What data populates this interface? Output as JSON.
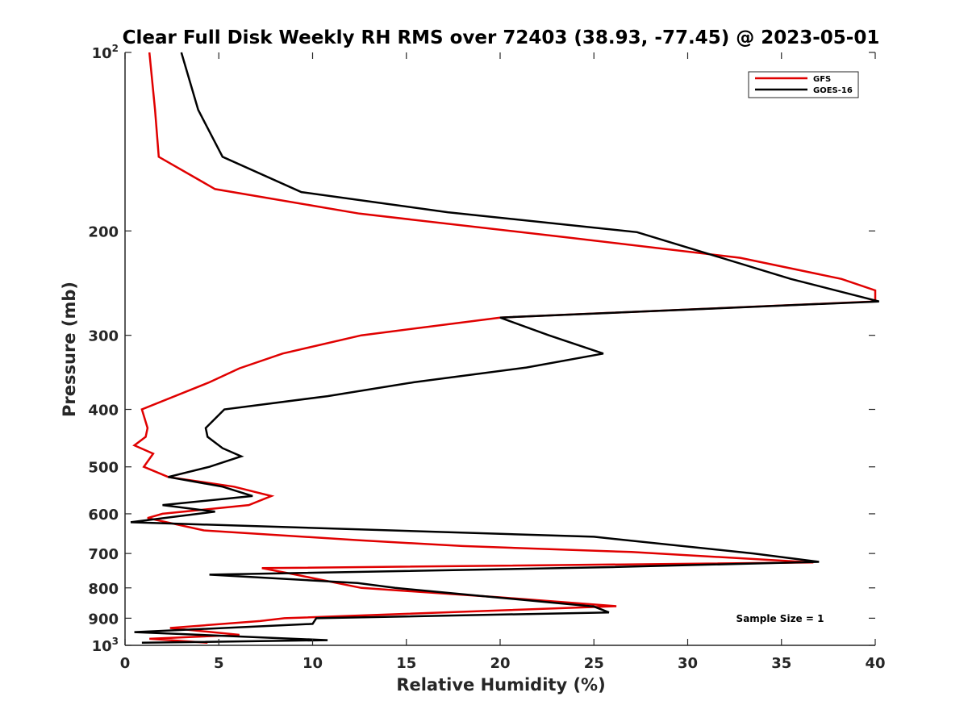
{
  "chart_data": {
    "type": "line",
    "title": "Clear Full Disk Weekly RH RMS over 72403 (38.93, -77.45) @ 2023-05-01",
    "xlabel": "Relative Humidity (%)",
    "ylabel": "Pressure (mb)",
    "xlim": [
      0,
      40
    ],
    "ylim": [
      100,
      1000
    ],
    "yscale": "log",
    "y_reversed": true,
    "grid": false,
    "legend_position": "top-right",
    "annotation": "Sample Size = 1",
    "x_ticks": [
      "0",
      "5",
      "10",
      "15",
      "20",
      "25",
      "30",
      "35",
      "40"
    ],
    "y_ticks": [
      {
        "value": 100,
        "base": "10",
        "exp": "2"
      },
      {
        "value": 200,
        "label": "200"
      },
      {
        "value": 300,
        "label": "300"
      },
      {
        "value": 400,
        "label": "400"
      },
      {
        "value": 500,
        "label": "500"
      },
      {
        "value": 600,
        "label": "600"
      },
      {
        "value": 700,
        "label": "700"
      },
      {
        "value": 800,
        "label": "800"
      },
      {
        "value": 900,
        "label": "900"
      },
      {
        "value": 1000,
        "base": "10",
        "exp": "3"
      }
    ],
    "series": [
      {
        "name": "GFS",
        "color": "#e00000",
        "points": [
          [
            1.3,
            100
          ],
          [
            1.6,
            125
          ],
          [
            1.8,
            150
          ],
          [
            4.8,
            170
          ],
          [
            12.5,
            187
          ],
          [
            23.5,
            205
          ],
          [
            32.8,
            222
          ],
          [
            38.2,
            241
          ],
          [
            40.0,
            252
          ],
          [
            40.0,
            263
          ],
          [
            20.0,
            280
          ],
          [
            12.6,
            300
          ],
          [
            8.4,
            322
          ],
          [
            6.1,
            341
          ],
          [
            4.5,
            360
          ],
          [
            0.9,
            400
          ],
          [
            1.2,
            430
          ],
          [
            1.1,
            445
          ],
          [
            0.5,
            460
          ],
          [
            1.5,
            475
          ],
          [
            1.0,
            500
          ],
          [
            2.3,
            520
          ],
          [
            5.8,
            540
          ],
          [
            7.8,
            560
          ],
          [
            6.6,
            580
          ],
          [
            2.0,
            600
          ],
          [
            1.2,
            610
          ],
          [
            4.2,
            640
          ],
          [
            12.5,
            665
          ],
          [
            18.0,
            680
          ],
          [
            27.0,
            696
          ],
          [
            36.7,
            725
          ],
          [
            7.3,
            741
          ],
          [
            9.1,
            760
          ],
          [
            12.6,
            800
          ],
          [
            20.0,
            830
          ],
          [
            26.2,
            859
          ],
          [
            8.5,
            900
          ],
          [
            7.2,
            910
          ],
          [
            2.4,
            935
          ],
          [
            6.1,
            960
          ],
          [
            1.3,
            975
          ],
          [
            4.4,
            990
          ]
        ]
      },
      {
        "name": "GOES-16",
        "color": "#000000",
        "points": [
          [
            3.0,
            100
          ],
          [
            3.9,
            125
          ],
          [
            5.2,
            150
          ],
          [
            9.4,
            172
          ],
          [
            17.2,
            186
          ],
          [
            27.3,
            201
          ],
          [
            35.5,
            241
          ],
          [
            40.2,
            263
          ],
          [
            20.0,
            280
          ],
          [
            22.6,
            300
          ],
          [
            25.5,
            322
          ],
          [
            21.4,
            340
          ],
          [
            15.4,
            360
          ],
          [
            10.8,
            380
          ],
          [
            5.3,
            400
          ],
          [
            4.3,
            430
          ],
          [
            4.4,
            445
          ],
          [
            5.2,
            465
          ],
          [
            6.2,
            480
          ],
          [
            4.5,
            500
          ],
          [
            2.3,
            520
          ],
          [
            5.2,
            540
          ],
          [
            6.8,
            560
          ],
          [
            2.0,
            580
          ],
          [
            4.8,
            595
          ],
          [
            0.3,
            620
          ],
          [
            25.0,
            656
          ],
          [
            33.5,
            700
          ],
          [
            37.0,
            723
          ],
          [
            26.0,
            738
          ],
          [
            4.5,
            760
          ],
          [
            12.4,
            785
          ],
          [
            14.4,
            800
          ],
          [
            25.0,
            860
          ],
          [
            25.8,
            880
          ],
          [
            10.2,
            900
          ],
          [
            10.0,
            920
          ],
          [
            0.5,
            950
          ],
          [
            10.8,
            980
          ],
          [
            0.9,
            990
          ]
        ]
      }
    ]
  }
}
